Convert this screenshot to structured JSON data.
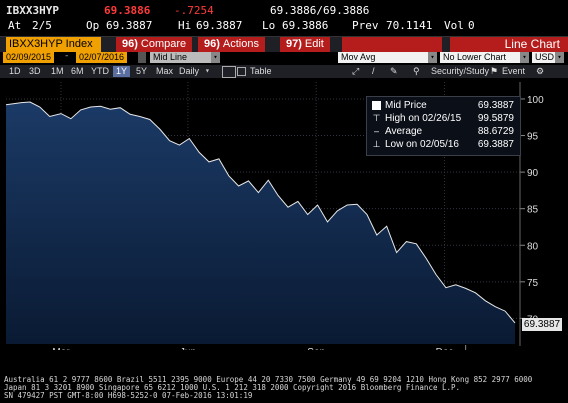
{
  "quote": {
    "ticker": "IBXX3HYP",
    "last": "69.3886",
    "change": "-.7254",
    "bid_ask": "69.3886/69.3886",
    "at_label": "At",
    "at_time": "2/5",
    "op_label": "Op",
    "op_value": "69.3887",
    "hi_label": "Hi",
    "hi_value": "69.3887",
    "lo_label": "Lo",
    "lo_value": "69.3886",
    "prev_label": "Prev",
    "prev_value": "70.1141",
    "vol_label": "Vol",
    "vol_value": "0"
  },
  "toolbar": {
    "title": "IBXX3HYP Index",
    "compare_num": "96)",
    "compare_label": "Compare",
    "actions_num": "96)",
    "actions_label": "Actions",
    "edit_num": "97)",
    "edit_label": "Edit",
    "view_label": "Line Chart"
  },
  "controls": {
    "start_date": "02/09/2015",
    "end_date": "02/07/2016",
    "line_type": "Mid Line",
    "mov_avg_label": "Mov Avg",
    "lower_chart": "No Lower Chart",
    "currency": "USD"
  },
  "periods": {
    "items": [
      "1D",
      "3D",
      "1M",
      "6M",
      "YTD",
      "1Y",
      "5Y",
      "Max",
      "Daily"
    ],
    "selected": "1Y",
    "table_label": "Table",
    "security_study": "Security/Study",
    "event_label": "Event"
  },
  "legend": {
    "mid_label": "Mid Price",
    "mid_value": "69.3887",
    "high_label": "High on 02/26/15",
    "high_value": "99.5879",
    "avg_label": "Average",
    "avg_value": "88.6729",
    "low_label": "Low on 02/05/16",
    "low_value": "69.3887"
  },
  "last_price_tag": "69.3887",
  "chart_data": {
    "type": "area",
    "x_months": [
      "Mar",
      "Jun",
      "Sep",
      "Dec"
    ],
    "x_years": [
      "2015",
      "2016"
    ],
    "yticks": [
      70,
      75,
      80,
      85,
      90,
      95,
      100
    ],
    "ylim": [
      66.5,
      101.5
    ],
    "series": [
      {
        "name": "Mid Price",
        "dates": [
          "2015-02-09",
          "2015-02-20",
          "2015-02-26",
          "2015-03-05",
          "2015-03-12",
          "2015-03-20",
          "2015-03-27",
          "2015-04-03",
          "2015-04-10",
          "2015-04-17",
          "2015-04-24",
          "2015-05-01",
          "2015-05-08",
          "2015-05-15",
          "2015-05-22",
          "2015-05-29",
          "2015-06-05",
          "2015-06-12",
          "2015-06-19",
          "2015-06-26",
          "2015-07-03",
          "2015-07-10",
          "2015-07-17",
          "2015-07-24",
          "2015-07-31",
          "2015-08-07",
          "2015-08-14",
          "2015-08-21",
          "2015-08-28",
          "2015-09-04",
          "2015-09-11",
          "2015-09-18",
          "2015-09-25",
          "2015-10-02",
          "2015-10-09",
          "2015-10-16",
          "2015-10-23",
          "2015-10-30",
          "2015-11-06",
          "2015-11-13",
          "2015-11-20",
          "2015-11-27",
          "2015-12-04",
          "2015-12-11",
          "2015-12-18",
          "2015-12-25",
          "2016-01-01",
          "2016-01-08",
          "2016-01-15",
          "2016-01-22",
          "2016-01-29",
          "2016-02-05"
        ],
        "values": [
          99.2,
          99.5,
          99.59,
          98.9,
          97.6,
          98.0,
          97.3,
          98.5,
          98.9,
          99.0,
          98.6,
          98.8,
          97.9,
          97.6,
          97.2,
          95.9,
          94.3,
          93.7,
          94.6,
          92.7,
          91.4,
          91.8,
          89.5,
          88.1,
          88.8,
          87.2,
          88.9,
          86.8,
          85.2,
          86.0,
          84.2,
          85.5,
          83.2,
          84.7,
          85.5,
          85.6,
          84.2,
          81.4,
          82.6,
          79.0,
          80.5,
          80.2,
          78.2,
          76.0,
          74.2,
          74.6,
          74.1,
          73.5,
          72.4,
          71.6,
          71.0,
          69.39
        ]
      }
    ]
  },
  "footer": {
    "line1": "Australia 61 2 9777 8600 Brazil 5511 2395 9000 Europe 44 20 7330 7500 Germany 49 69 9204 1210 Hong Kong 852 2977 6000",
    "line2": "Japan 81 3 3201 8900          Singapore 65 6212 1000       U.S. 1 212 318 2000           Copyright 2016 Bloomberg Finance L.P.",
    "line3": "                                                                  SN 479427 PST   GMT-8:00 H698-5252-0 07-Feb-2016 13:01:19"
  }
}
